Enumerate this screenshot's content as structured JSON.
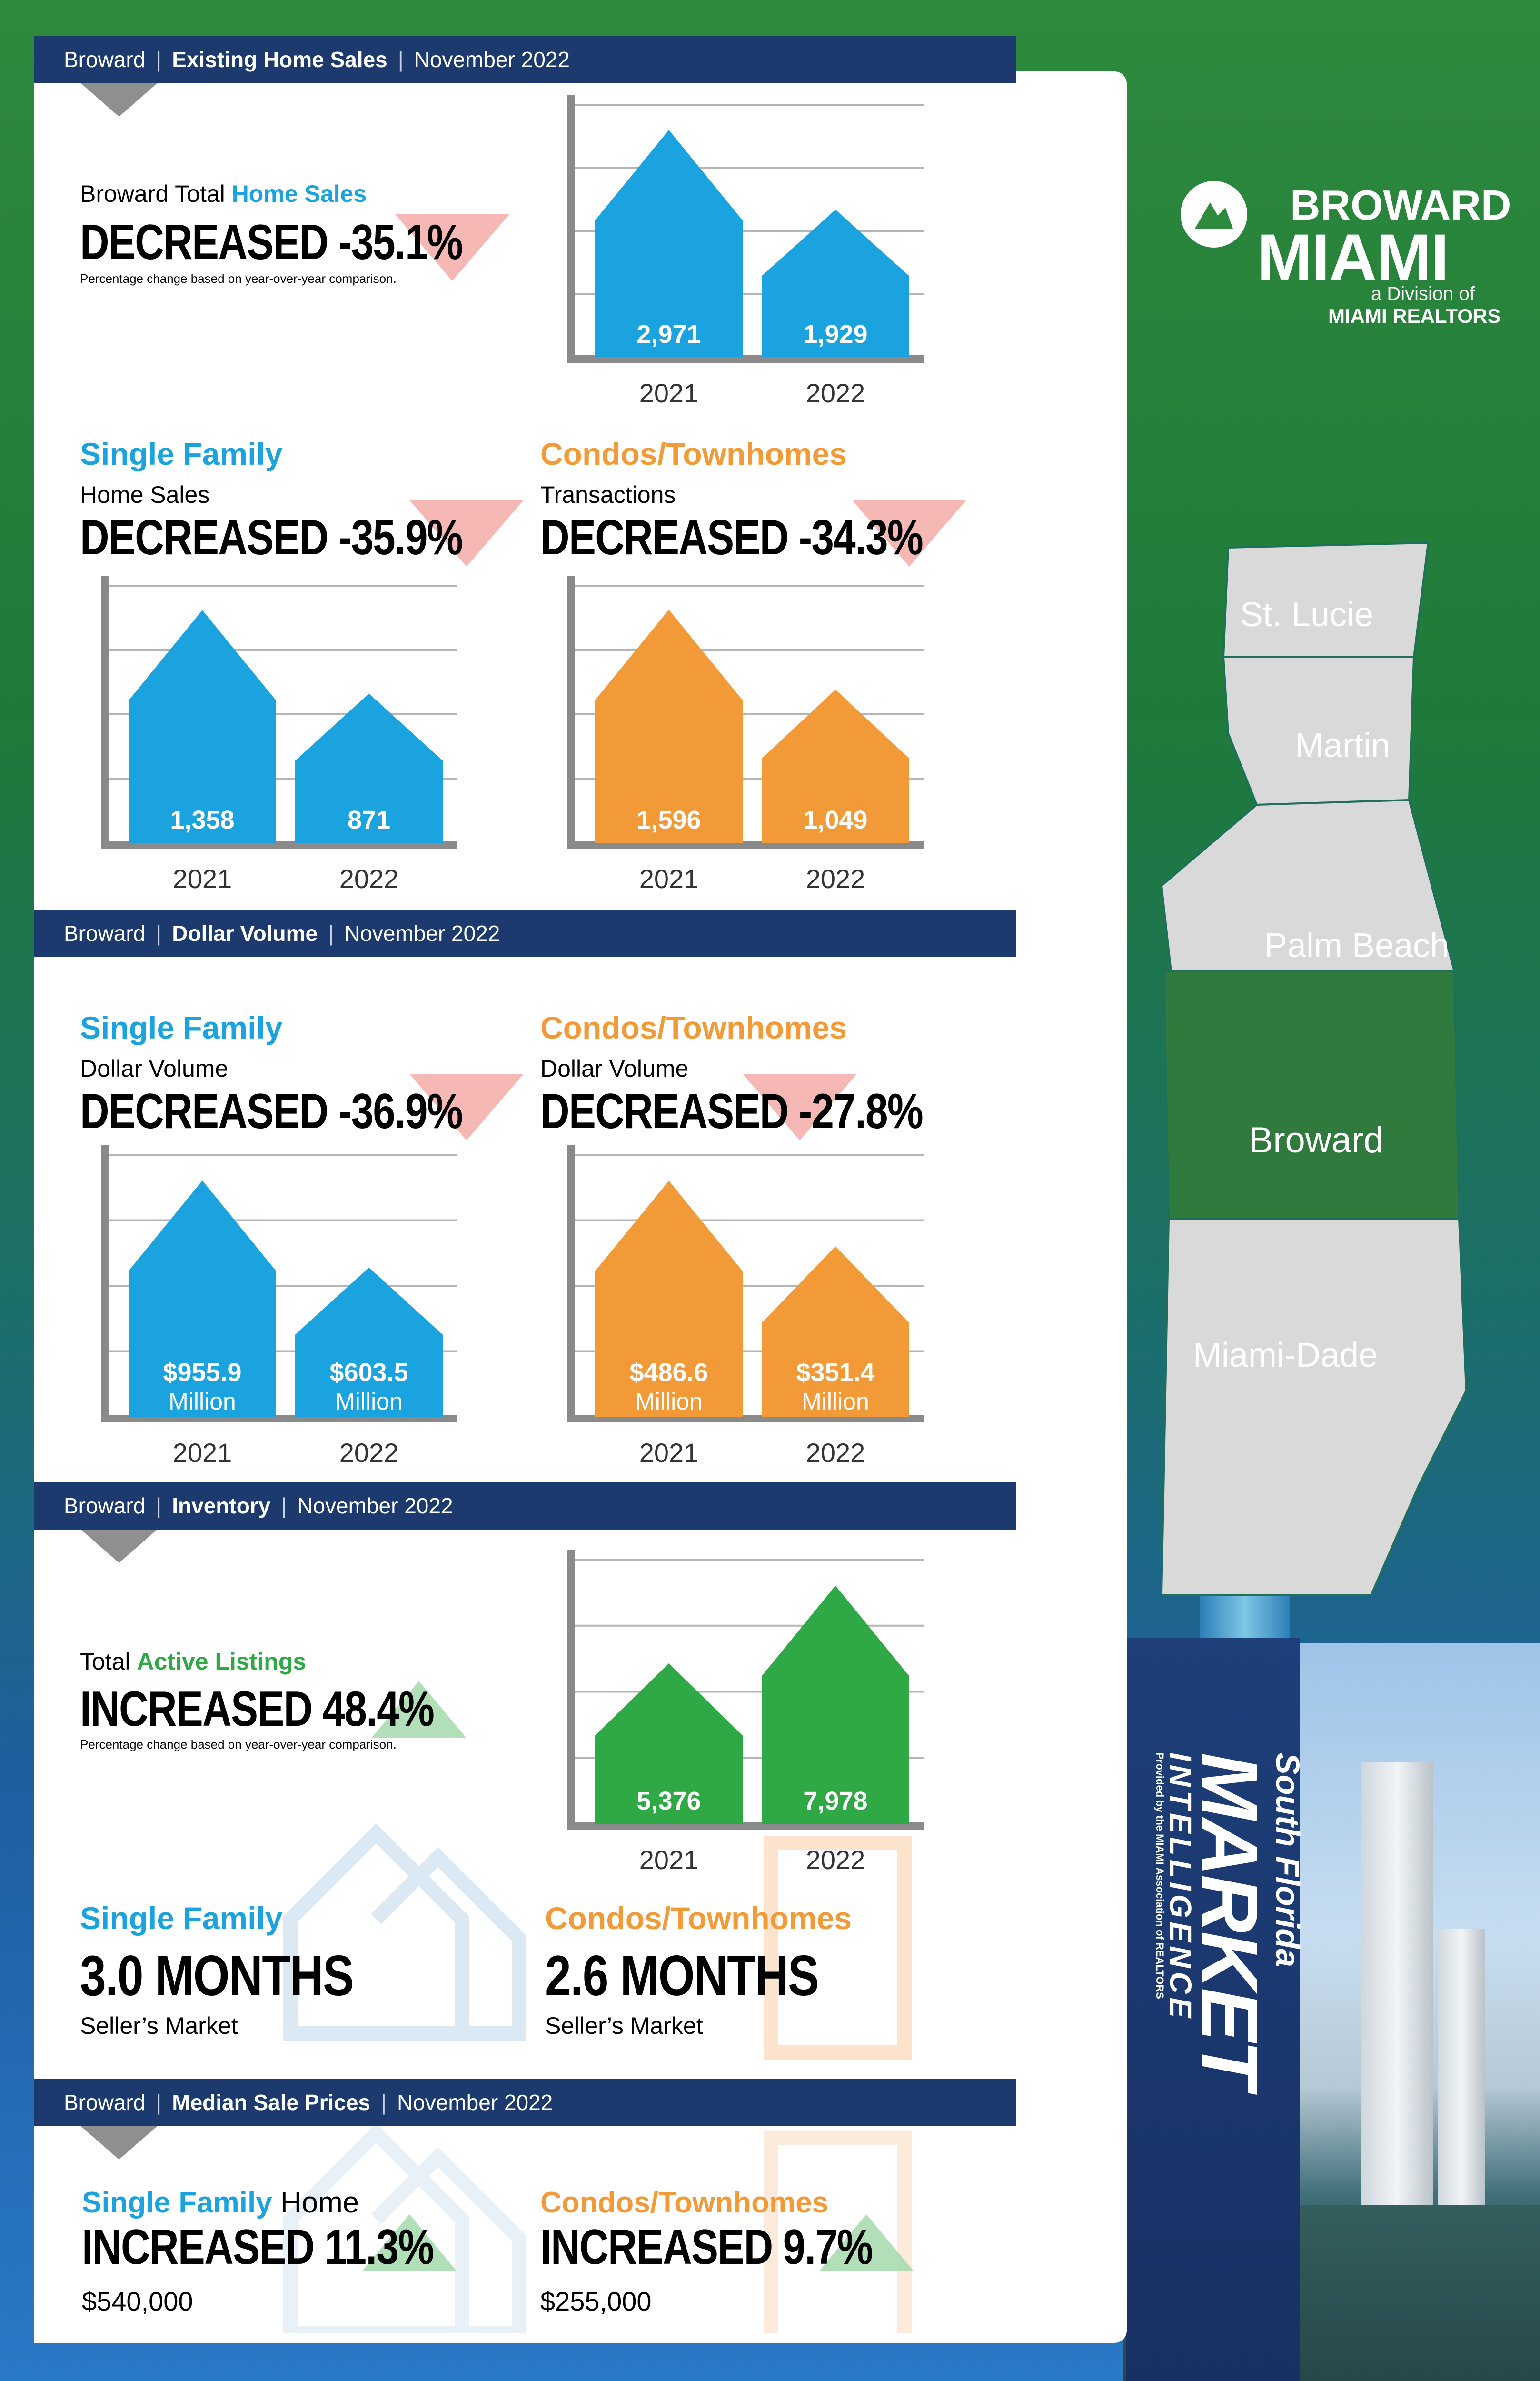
{
  "logo": {
    "line1": "BROWARD",
    "line2": "MIAMI",
    "line3": "a Division of",
    "line4": "MIAMI REALTORS"
  },
  "map": {
    "regions": [
      "St. Lucie",
      "Martin",
      "Palm Beach",
      "Broward",
      "Miami-Dade"
    ],
    "highlight": "Broward"
  },
  "brand": {
    "line1": "South Florida",
    "line2": "MARKET",
    "line3": "INTELLIGENCE",
    "line4": "Provided by the MIAMI Association of REALTORS"
  },
  "sections": {
    "sales": {
      "area": "Broward",
      "name": "Existing Home Sales",
      "period": "November 2022"
    },
    "volume": {
      "area": "Broward",
      "name": "Dollar Volume",
      "period": "November 2022"
    },
    "inventory": {
      "area": "Broward",
      "name": "Inventory",
      "period": "November 2022"
    },
    "median": {
      "area": "Broward",
      "name": "Median Sale Prices",
      "period": "November 2022"
    }
  },
  "total_sales": {
    "pre": "Broward Total ",
    "highlight": "Home Sales",
    "headline": "DECREASED -35.1%",
    "note": "Percentage change based on year-over-year comparison."
  },
  "sf_sales": {
    "title": "Single Family",
    "sub": "Home Sales",
    "headline": "DECREASED -35.9%"
  },
  "condo_sales": {
    "title": "Condos/Townhomes",
    "sub": "Transactions",
    "headline": "DECREASED -34.3%"
  },
  "sf_volume": {
    "title": "Single Family",
    "sub": "Dollar Volume",
    "headline": "DECREASED -36.9%"
  },
  "condo_volume": {
    "title": "Condos/Townhomes",
    "sub": "Dollar Volume",
    "headline": "DECREASED -27.8%"
  },
  "listings": {
    "pre": "Total ",
    "highlight": "Active Listings",
    "headline": "INCREASED 48.4%",
    "note": "Percentage change based on year-over-year comparison."
  },
  "sf_months": {
    "title": "Single Family",
    "value": "3.0 MONTHS",
    "sub": "Seller’s Market"
  },
  "condo_months": {
    "title": "Condos/Townhomes",
    "value": "2.6 MONTHS",
    "sub": "Seller’s Market"
  },
  "sf_median": {
    "title": "Single Family",
    "title2": " Home",
    "headline": "INCREASED 11.3%",
    "price": "$540,000"
  },
  "condo_median": {
    "title": "Condos/Townhomes",
    "headline": "INCREASED 9.7%",
    "price": "$255,000"
  },
  "colors": {
    "blue": "#1ba3e0",
    "orange": "#f39a38",
    "green": "#2fa846",
    "navy": "#1c3a6e",
    "down": "#e8413c",
    "up": "#3aa84a"
  },
  "chart_data": [
    {
      "id": "total_sales",
      "type": "bar",
      "categories": [
        "2021",
        "2022"
      ],
      "values": [
        2971,
        1929
      ],
      "labels": [
        "2,971",
        "1,929"
      ],
      "sublabels": [
        "",
        ""
      ],
      "color": "#1ba3e0",
      "ymax": 3300
    },
    {
      "id": "sf_sales",
      "type": "bar",
      "categories": [
        "2021",
        "2022"
      ],
      "values": [
        1358,
        871
      ],
      "labels": [
        "1,358",
        "871"
      ],
      "sublabels": [
        "",
        ""
      ],
      "color": "#1ba3e0",
      "ymax": 1500
    },
    {
      "id": "condo_sales",
      "type": "bar",
      "categories": [
        "2021",
        "2022"
      ],
      "values": [
        1596,
        1049
      ],
      "labels": [
        "1,596",
        "1,049"
      ],
      "sublabels": [
        "",
        ""
      ],
      "color": "#f39a38",
      "ymax": 1760
    },
    {
      "id": "sf_volume",
      "type": "bar",
      "categories": [
        "2021",
        "2022"
      ],
      "values": [
        955.9,
        603.5
      ],
      "labels": [
        "$955.9",
        "$603.5"
      ],
      "sublabels": [
        "Million",
        "Million"
      ],
      "color": "#1ba3e0",
      "ymax": 1060
    },
    {
      "id": "condo_volume",
      "type": "bar",
      "categories": [
        "2021",
        "2022"
      ],
      "values": [
        486.6,
        351.4
      ],
      "labels": [
        "$486.6",
        "$351.4"
      ],
      "sublabels": [
        "Million",
        "Million"
      ],
      "color": "#f39a38",
      "ymax": 540
    },
    {
      "id": "listings",
      "type": "bar",
      "categories": [
        "2021",
        "2022"
      ],
      "values": [
        5376,
        7978
      ],
      "labels": [
        "5,376",
        "7,978"
      ],
      "sublabels": [
        "",
        ""
      ],
      "color": "#2fa846",
      "ymax": 8850
    }
  ]
}
